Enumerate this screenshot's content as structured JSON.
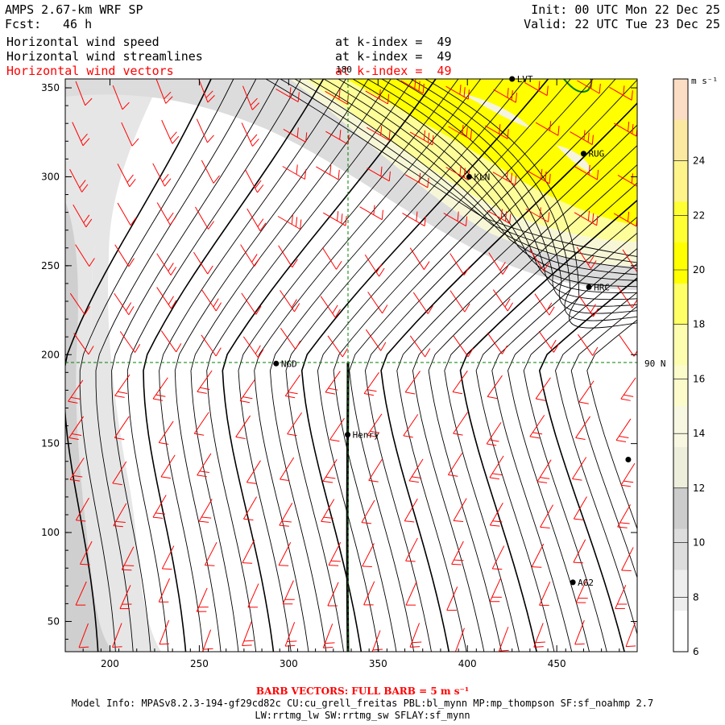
{
  "header": {
    "model": "AMPS 2.67-km WRF SP",
    "fcst_label": "Fcst:",
    "fcst_value": "46 h",
    "init": "Init: 00 UTC Mon 22 Dec 25",
    "valid": "Valid: 22 UTC Tue 23 Dec 25"
  },
  "fields": [
    {
      "name": "Horizontal wind speed",
      "level": "at k-index =  49",
      "color": "#000000"
    },
    {
      "name": "Horizontal wind streamlines",
      "level": "at k-index =  49",
      "color": "#000000"
    },
    {
      "name": "Horizontal wind vectors",
      "level": "at k-index =  49",
      "color": "#ff0000"
    }
  ],
  "map": {
    "x_ticks": [
      "200",
      "250",
      "300",
      "350",
      "400",
      "450"
    ],
    "y_ticks": [
      "350",
      "300",
      "250",
      "200",
      "150",
      "100",
      "50"
    ],
    "x_range": [
      175,
      495
    ],
    "y_range": [
      33,
      355
    ],
    "meridian_label": "180",
    "parallel_label": "90 N",
    "stations": [
      {
        "name": "LVT",
        "x": 425,
        "y": 355
      },
      {
        "name": "RUG",
        "x": 465,
        "y": 313
      },
      {
        "name": "KLN",
        "x": 401,
        "y": 300
      },
      {
        "name": "HRC",
        "x": 468,
        "y": 238
      },
      {
        "name": "NGD",
        "x": 293,
        "y": 195
      },
      {
        "name": "Henry",
        "x": 333,
        "y": 155
      },
      {
        "name": "",
        "x": 490,
        "y": 141
      },
      {
        "name": "AG2",
        "x": 459,
        "y": 72
      }
    ],
    "colors": {
      "barb": "#ff0000",
      "streamline": "#000000",
      "grid": "#008000"
    }
  },
  "colorbar": {
    "units": "m s⁻¹",
    "labels": [
      "24",
      "22",
      "20",
      "18",
      "16",
      "14",
      "12",
      "10",
      "8",
      "6"
    ],
    "bands": [
      "#fbdcc4",
      "#fbe9a2",
      "#fff48a",
      "#ffff33",
      "#ffff00",
      "#ffff66",
      "#fdfdb0",
      "#fbfbcc",
      "#f7f7e2",
      "#eeeedd",
      "#cccccc",
      "#dddddd",
      "#eeeeee",
      "#ffffff"
    ]
  },
  "footer": {
    "barb": "BARB VECTORS: FULL BARB = 5 m s⁻¹",
    "model_info": "Model Info: MPASv8.2.3-194-gf29cd82c CU:cu_grell_freitas PBL:bl_mynn MP:mp_thompson SF:sf_noahmp 2.7",
    "schemes": "LW:rrtmg_lw SW:rrtmg_sw SFLAY:sf_mynn"
  }
}
